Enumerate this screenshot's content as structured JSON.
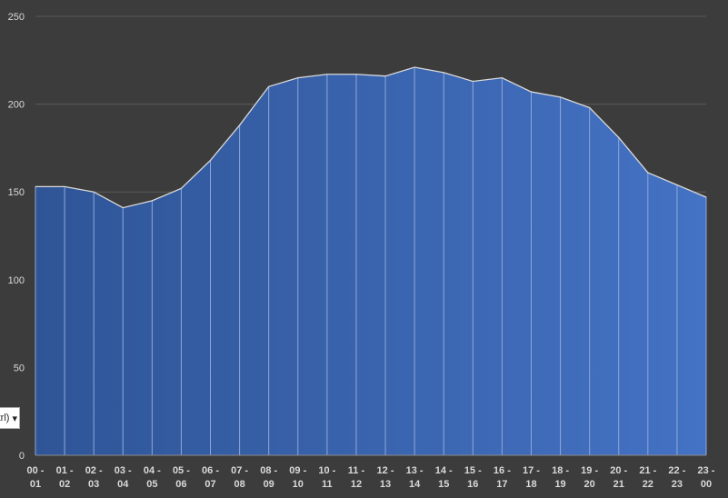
{
  "chart_data": {
    "type": "area",
    "title": "",
    "xlabel": "",
    "ylabel": "",
    "ylim": [
      0,
      250
    ],
    "yticks": [
      0,
      50,
      100,
      150,
      200,
      250
    ],
    "grid": true,
    "legend": "none",
    "categories": [
      "00 - 01",
      "01 - 02",
      "02 - 03",
      "03 - 04",
      "04 - 05",
      "05 - 06",
      "06 - 07",
      "07 - 08",
      "08 - 09",
      "09 - 10",
      "10 - 11",
      "11 - 12",
      "12 - 13",
      "13 - 14",
      "14 - 15",
      "15 - 16",
      "16 - 17",
      "17 - 18",
      "18 - 19",
      "19 - 20",
      "20 - 21",
      "21 - 22",
      "22 - 23",
      "23 - 00"
    ],
    "values": [
      153,
      153,
      150,
      141,
      145,
      152,
      168,
      188,
      210,
      215,
      217,
      217,
      216,
      221,
      218,
      213,
      215,
      207,
      204,
      198,
      181,
      161,
      154,
      147
    ],
    "colors": {
      "fill_start": "#2f5597",
      "fill_end": "#4472c4",
      "line": "#d9d9d9",
      "background": "#3c3c3c",
      "text": "#d9d9d9"
    }
  },
  "paste_options": {
    "label": "trl)"
  }
}
